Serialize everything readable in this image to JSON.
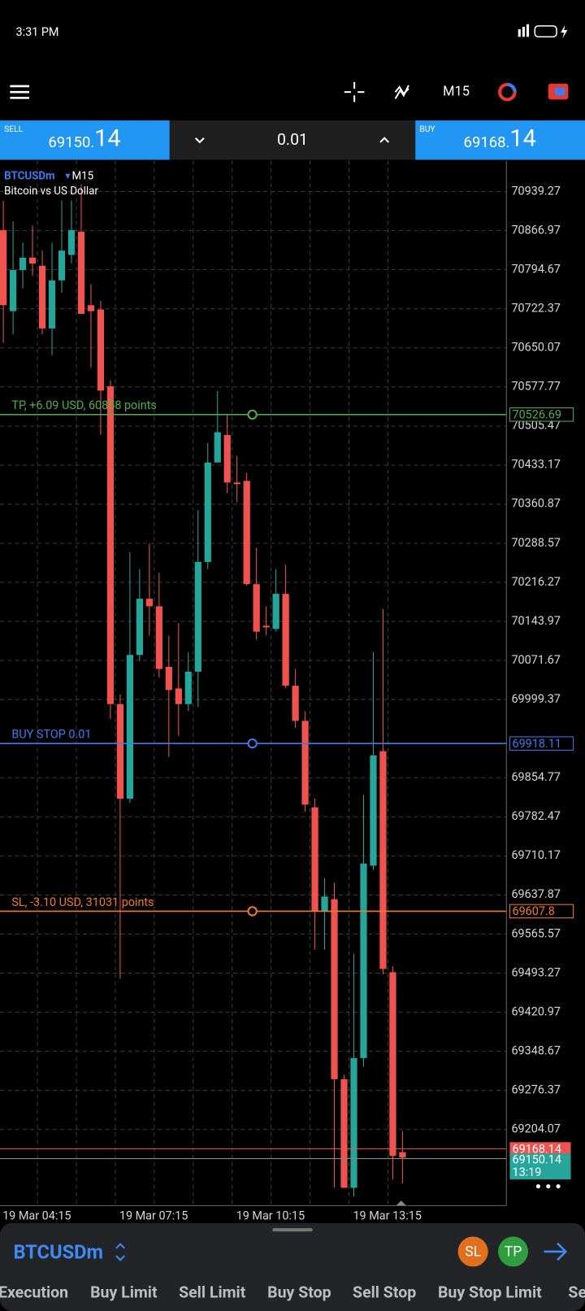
{
  "status_bar": {
    "time": "3:31 PM"
  },
  "trade_panel": {
    "sell_label": "SELL",
    "sell_price_main": "69150.",
    "sell_price_pips": "14",
    "volume": "0.01",
    "buy_label": "BUY",
    "buy_price_main": "69168.",
    "buy_price_pips": "14"
  },
  "chart_data": {
    "type": "candlestick",
    "symbol": "BTCUSDm",
    "timeframe": "M15",
    "subtitle": "Bitcoin vs US Dollar",
    "categories": [
      "19 Mar 04:15",
      null,
      null,
      null,
      null,
      null,
      null,
      null,
      null,
      null,
      null,
      null,
      "19 Mar 07:15",
      null,
      null,
      null,
      null,
      null,
      null,
      null,
      null,
      null,
      null,
      null,
      "19 Mar 10:15",
      null,
      null,
      null,
      null,
      null,
      null,
      null,
      null,
      null,
      null,
      null,
      "19 Mar 13:15",
      null,
      null,
      null,
      null,
      null
    ],
    "open": [
      70868,
      70718,
      70794,
      70817,
      70802,
      70686,
      70775,
      70822,
      70865,
      70729,
      70721,
      70579,
      69991,
      69816,
      70082,
      70186,
      70172,
      70060,
      70020,
      69991,
      70051,
      70254,
      70438,
      70489,
      70401,
      70404,
      70213,
      70136,
      70130,
      70195,
      70025,
      69960,
      69800,
      69607,
      69630,
      69297,
      69096,
      69336,
      69692,
      69904,
      69495,
      69162
    ],
    "high": [
      70922,
      70884,
      70845,
      70876,
      70830,
      70845,
      70923,
      70923,
      70953,
      70768,
      70737,
      70590,
      70009,
      70272,
      70241,
      70288,
      70234,
      70118,
      70141,
      70087,
      70350,
      70474,
      70570,
      70528,
      70450,
      70419,
      70280,
      70172,
      70241,
      70249,
      70056,
      69978,
      69816,
      69669,
      69661,
      69305,
      69529,
      69823,
      70087,
      70167,
      69506,
      69201
    ],
    "low": [
      70659,
      70675,
      70760,
      70783,
      70675,
      70636,
      70752,
      70806,
      70713,
      70613,
      70489,
      69963,
      69483,
      69808,
      70071,
      70118,
      70040,
      69893,
      69932,
      69978,
      69986,
      70241,
      70438,
      70381,
      70365,
      70210,
      70110,
      70118,
      70125,
      70021,
      69947,
      69792,
      69537,
      69537,
      69096,
      69096,
      69080,
      69320,
      69684,
      69491,
      69111,
      69104
    ],
    "close": [
      70729,
      70794,
      70817,
      70806,
      70686,
      70775,
      70830,
      70868,
      70713,
      70718,
      70571,
      69991,
      69816,
      70082,
      70186,
      70172,
      70056,
      70017,
      69991,
      70051,
      70254,
      70438,
      70494,
      70401,
      70398,
      70213,
      70125,
      70133,
      70195,
      70025,
      69960,
      69805,
      69607,
      69635,
      69297,
      69096,
      69336,
      69696,
      69896,
      69501,
      69155,
      69152
    ],
    "up_color": "#26a69a",
    "down_color": "#ef5350",
    "ylim": [
      69064.7,
      70996.5
    ],
    "yticks": [
      70939.27,
      70866.97,
      70794.67,
      70722.37,
      70650.07,
      70577.77,
      70505.47,
      70433.17,
      70360.87,
      70288.57,
      70216.27,
      70143.97,
      70071.67,
      69999.37,
      69854.77,
      69782.47,
      69710.17,
      69637.87,
      69565.57,
      69493.27,
      69420.97,
      69348.67,
      69276.37,
      69204.07
    ],
    "grid": true,
    "levels": [
      {
        "name": "TP, +6.09 USD, 60858 points",
        "value": 70526.69,
        "color": "#4caf50"
      },
      {
        "name": "BUY STOP 0.01",
        "value": 69918.11,
        "color": "#3d7bf0"
      },
      {
        "name": "SL, -3.10 USD, 31031 points",
        "value": 69607.8,
        "color": "#f07a2c"
      }
    ],
    "ask": 69168.14,
    "bid": 69150.14,
    "timer": "13:19"
  },
  "order_panel": {
    "symbol": "BTCUSDm",
    "sl": "SL",
    "tp": "TP",
    "tabs": [
      "Execution",
      "Buy Limit",
      "Sell Limit",
      "Buy Stop",
      "Sell Stop",
      "Buy Stop Limit",
      "Sell Stop Limit"
    ],
    "active_tab": 3
  }
}
